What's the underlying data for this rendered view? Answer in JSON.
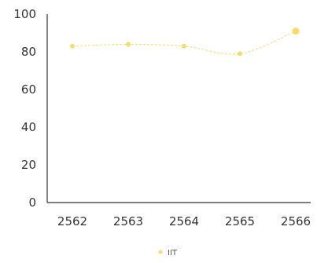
{
  "chart_data": {
    "type": "line",
    "categories": [
      "2562",
      "2563",
      "2564",
      "2565",
      "2566"
    ],
    "series": [
      {
        "name": "IIT",
        "values": [
          83,
          84,
          83,
          79,
          91
        ]
      }
    ],
    "y_ticks": [
      "0",
      "20",
      "40",
      "60",
      "80",
      "100"
    ],
    "ylim": [
      0,
      100
    ],
    "grid": false,
    "legend": "bottom-center",
    "colors": {
      "series": "#f5dc6b",
      "axis": "#333333"
    }
  }
}
